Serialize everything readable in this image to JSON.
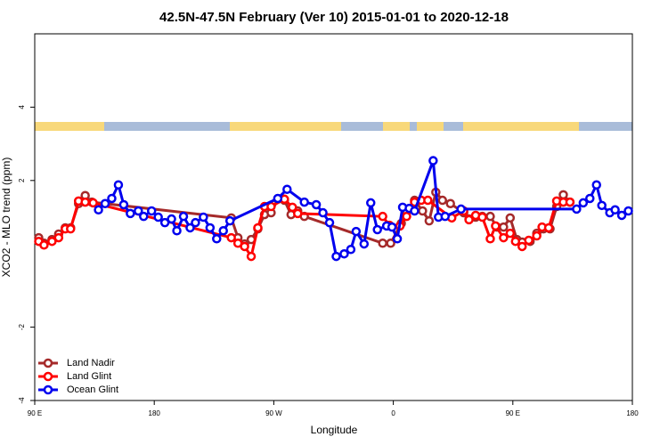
{
  "chart_data": {
    "type": "line",
    "title": "42.5N-47.5N February (Ver 10)   2015-01-01 to 2020-12-18",
    "x_label": "Longitude",
    "y_label": "XCO2 - MLO trend (ppm)",
    "xlim": [
      90,
      540
    ],
    "xticks": [
      {
        "value": 90,
        "label": "90 E"
      },
      {
        "value": 180,
        "label": "180"
      },
      {
        "value": 270,
        "label": "90 W"
      },
      {
        "value": 360,
        "label": "0"
      },
      {
        "value": 450,
        "label": "90 E"
      },
      {
        "value": 540,
        "label": "180"
      }
    ],
    "ylim": [
      -4,
      6
    ],
    "yticks": [
      -4,
      -2,
      2,
      4
    ],
    "legend": "bottomleft",
    "series": [
      {
        "name": "Land Nadir",
        "color": "#a52a2a",
        "x": [
          93,
          97,
          103,
          108,
          113,
          117,
          123,
          128,
          133,
          238,
          243,
          248,
          253,
          258,
          263,
          268,
          273,
          278,
          283,
          288,
          293,
          352,
          358,
          366,
          370,
          376,
          382,
          387,
          392,
          397,
          403,
          413,
          417,
          422,
          427,
          433,
          438,
          443,
          448,
          453,
          457,
          463,
          468,
          473,
          478,
          483,
          488,
          493
        ],
        "values": [
          0.44,
          0.29,
          0.39,
          0.54,
          0.71,
          0.71,
          1.37,
          1.59,
          1.41,
          0.98,
          0.44,
          0.27,
          0.39,
          0.68,
          1.07,
          1.12,
          1.49,
          1.46,
          1.07,
          1.17,
          1.02,
          0.29,
          0.29,
          0.83,
          1.15,
          1.46,
          1.17,
          0.9,
          1.68,
          1.46,
          1.37,
          1.12,
          0.95,
          1.0,
          1.02,
          1.02,
          0.73,
          0.73,
          0.98,
          0.39,
          0.32,
          0.34,
          0.56,
          0.68,
          0.68,
          1.29,
          1.61,
          1.41
        ]
      },
      {
        "name": "Land Glint",
        "color": "#ff0000",
        "x": [
          93,
          97,
          103,
          108,
          113,
          117,
          123,
          128,
          134,
          238,
          243,
          248,
          253,
          258,
          263,
          268,
          278,
          284,
          288,
          352,
          357,
          365,
          370,
          376,
          381,
          386,
          404,
          413,
          417,
          422,
          427,
          433,
          437,
          443,
          448,
          452,
          457,
          462,
          468,
          472,
          477,
          483,
          488,
          493
        ],
        "values": [
          0.34,
          0.24,
          0.34,
          0.44,
          0.68,
          0.68,
          1.44,
          1.41,
          1.39,
          0.44,
          0.29,
          0.2,
          -0.07,
          0.71,
          1.29,
          1.29,
          1.49,
          1.27,
          1.1,
          1.02,
          0.78,
          0.76,
          1.02,
          1.41,
          1.46,
          1.46,
          0.98,
          1.17,
          0.93,
          1.05,
          1.0,
          0.41,
          0.76,
          0.44,
          0.56,
          0.34,
          0.2,
          0.37,
          0.49,
          0.73,
          0.71,
          1.44,
          1.41,
          1.41
        ]
      },
      {
        "name": "Ocean Glint",
        "color": "#0000ee",
        "x": [
          138,
          143,
          148,
          153,
          157,
          162,
          168,
          172,
          178,
          183,
          188,
          193,
          197,
          202,
          207,
          211,
          217,
          222,
          227,
          232,
          237,
          273,
          280,
          293,
          302,
          307,
          312,
          317,
          323,
          328,
          332,
          338,
          343,
          348,
          355,
          359,
          363,
          367,
          372,
          376,
          390,
          394,
          399,
          411,
          498,
          503,
          508,
          513,
          517,
          523,
          527,
          532,
          537
        ],
        "values": [
          1.2,
          1.37,
          1.51,
          1.88,
          1.34,
          1.1,
          1.17,
          1.02,
          1.17,
          1.0,
          0.85,
          0.95,
          0.63,
          1.02,
          0.71,
          0.85,
          1.0,
          0.71,
          0.41,
          0.63,
          0.9,
          1.51,
          1.76,
          1.41,
          1.34,
          1.12,
          0.85,
          -0.07,
          0.0,
          0.12,
          0.61,
          0.27,
          1.39,
          0.66,
          0.76,
          0.73,
          0.41,
          1.27,
          1.24,
          1.17,
          2.54,
          1.0,
          1.02,
          1.22,
          1.22,
          1.39,
          1.51,
          1.88,
          1.32,
          1.12,
          1.2,
          1.05,
          1.17
        ]
      }
    ]
  }
}
